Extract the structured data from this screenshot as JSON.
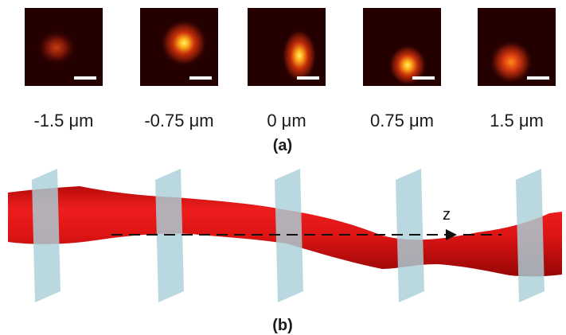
{
  "panel_a": {
    "caption": "(a)",
    "depths": [
      {
        "label": "-1.5 μm"
      },
      {
        "label": "-0.75 μm"
      },
      {
        "label": "0 μm"
      },
      {
        "label": "0.75 μm"
      },
      {
        "label": "1.5 μm"
      }
    ]
  },
  "panel_b": {
    "caption": "(b)",
    "axis_label": "z"
  },
  "colors": {
    "panel_background": "#240000",
    "spot_hot": "#ffe95a",
    "fiber_red": "#d40f0f",
    "plane_tint": "#a9d0d8",
    "scale_bar": "#ffffff"
  }
}
